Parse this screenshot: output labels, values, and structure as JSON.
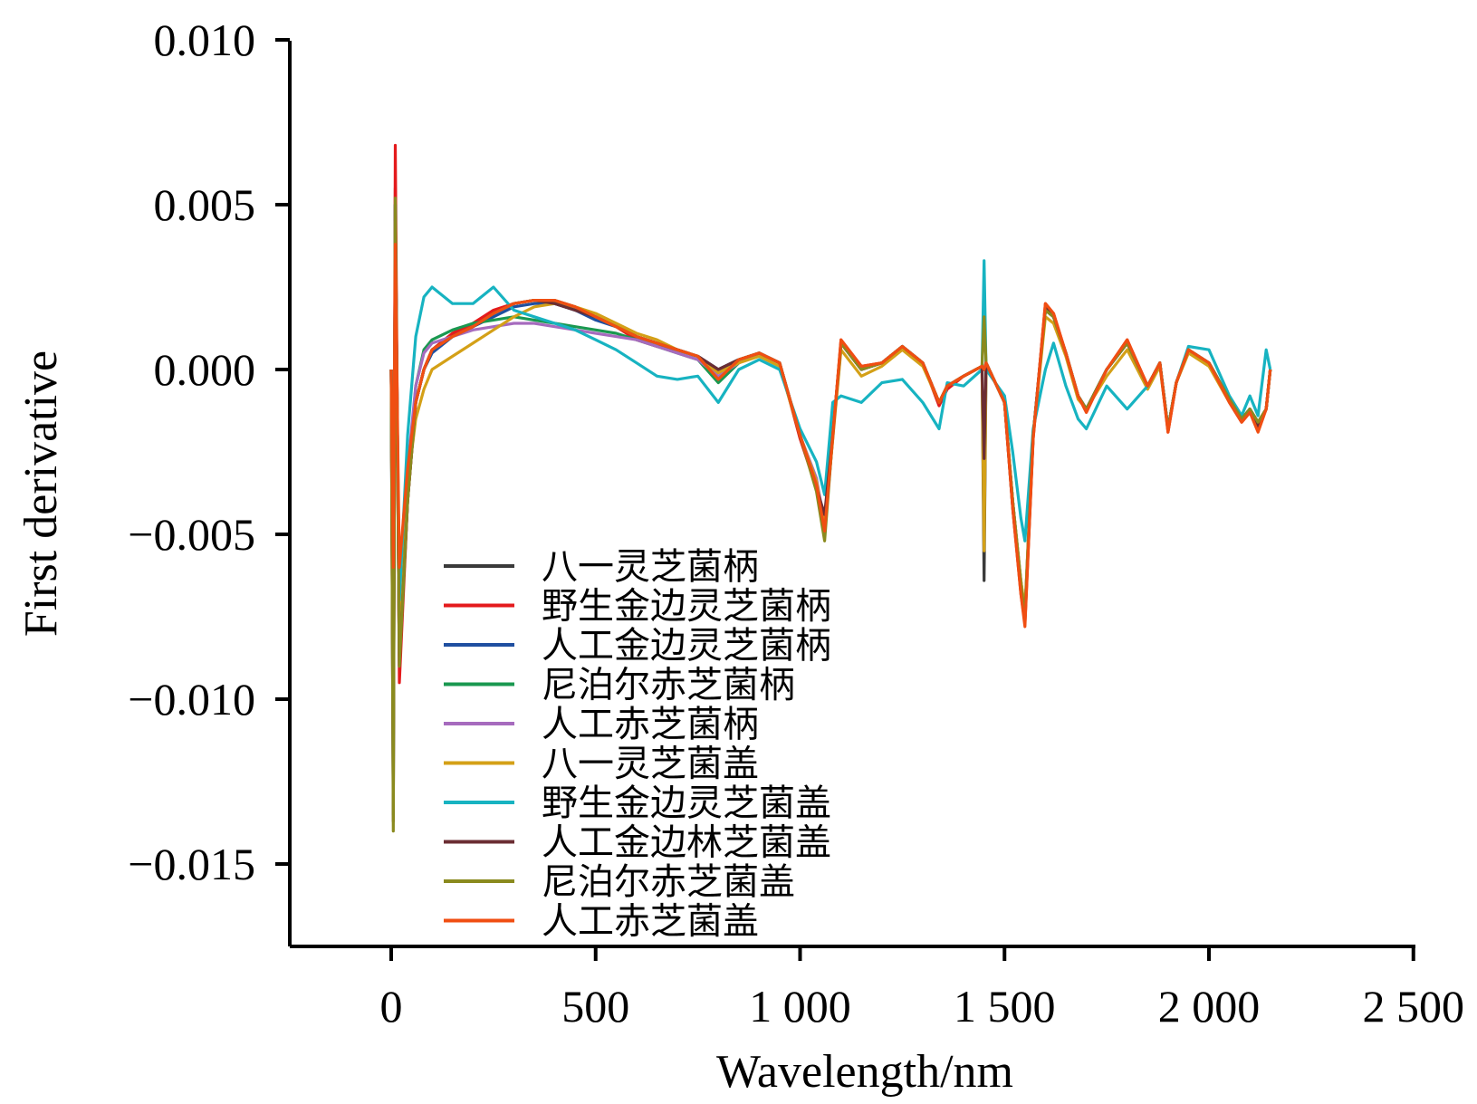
{
  "chart_data": {
    "type": "line",
    "title": "",
    "xlabel": "Wavelength/nm",
    "ylabel": "First derivative",
    "xlim": [
      -250,
      2500
    ],
    "ylim": [
      -0.0175,
      0.01
    ],
    "x_ticks": [
      0,
      500,
      1000,
      1500,
      2000,
      2500
    ],
    "x_tick_labels": [
      "0",
      "500",
      "1 000",
      "1 500",
      "2 000",
      "2 500"
    ],
    "y_ticks": [
      0.01,
      0.005,
      0.0,
      -0.005,
      -0.01,
      -0.015
    ],
    "y_tick_labels": [
      "0.010",
      "0.005",
      "0.000",
      "−0.005",
      "−0.010",
      "−0.015"
    ],
    "grid": false,
    "legend_position": "lower-left-center",
    "x": [
      0,
      5,
      10,
      20,
      40,
      60,
      80,
      100,
      150,
      200,
      250,
      300,
      350,
      400,
      450,
      500,
      550,
      600,
      650,
      700,
      750,
      800,
      850,
      900,
      950,
      1000,
      1040,
      1060,
      1080,
      1100,
      1150,
      1200,
      1250,
      1300,
      1340,
      1360,
      1400,
      1445,
      1450,
      1455,
      1500,
      1520,
      1540,
      1550,
      1570,
      1600,
      1620,
      1650,
      1680,
      1700,
      1750,
      1800,
      1850,
      1880,
      1900,
      1920,
      1950,
      2000,
      2050,
      2080,
      2100,
      2120,
      2140,
      2150
    ],
    "series": [
      {
        "name": "八一灵芝菌柄",
        "color": "#3a3a3a",
        "values": [
          0.0,
          -0.0135,
          0.0055,
          -0.009,
          -0.004,
          -0.001,
          0.0,
          0.0006,
          0.001,
          0.0013,
          0.0017,
          0.002,
          0.0021,
          0.002,
          0.0018,
          0.0016,
          0.0013,
          0.001,
          0.0008,
          0.0006,
          0.0004,
          0.0,
          0.0003,
          0.0005,
          0.0002,
          -0.002,
          -0.0035,
          -0.005,
          -0.002,
          0.0008,
          0.0,
          0.0002,
          0.0007,
          0.0002,
          -0.001,
          -0.0005,
          -0.0002,
          0.0001,
          -0.0064,
          0.0002,
          -0.001,
          -0.004,
          -0.0065,
          -0.0075,
          -0.002,
          0.0018,
          0.0016,
          0.0005,
          -0.0008,
          -0.0012,
          0.0,
          0.0008,
          -0.0005,
          0.0002,
          -0.0018,
          -0.0004,
          0.0006,
          0.0002,
          -0.0009,
          -0.0015,
          -0.0012,
          -0.0016,
          -0.0012,
          0.0
        ]
      },
      {
        "name": "野生金边灵芝菌柄",
        "color": "#e41a1c",
        "values": [
          0.0,
          -0.012,
          0.0068,
          -0.0095,
          -0.004,
          -0.001,
          0.0,
          0.0006,
          0.0011,
          0.0014,
          0.0018,
          0.002,
          0.0021,
          0.0021,
          0.0019,
          0.0016,
          0.0013,
          0.0009,
          0.0007,
          0.0006,
          0.0004,
          -0.0003,
          0.0002,
          0.0005,
          0.0002,
          -0.0021,
          -0.0036,
          -0.0048,
          -0.0021,
          0.0009,
          0.0001,
          0.0002,
          0.0006,
          0.0002,
          -0.0011,
          -0.0006,
          -0.0002,
          0.0001,
          0.0,
          0.0002,
          -0.001,
          -0.0042,
          -0.0068,
          -0.0077,
          -0.0021,
          0.002,
          0.0017,
          0.0005,
          -0.0008,
          -0.0013,
          0.0,
          0.0009,
          -0.0005,
          0.0002,
          -0.0019,
          -0.0004,
          0.0006,
          0.0002,
          -0.001,
          -0.0016,
          -0.0013,
          -0.0018,
          -0.0012,
          0.0
        ]
      },
      {
        "name": "人工金边灵芝菌柄",
        "color": "#1f4fa0",
        "values": [
          0.0,
          -0.011,
          0.005,
          -0.008,
          -0.0035,
          -0.001,
          0.0,
          0.0005,
          0.001,
          0.0013,
          0.0016,
          0.0019,
          0.002,
          0.002,
          0.0018,
          0.0015,
          0.0013,
          0.001,
          0.0008,
          0.0006,
          0.0004,
          0.0,
          0.0003,
          0.0005,
          0.0002,
          -0.002,
          -0.0034,
          -0.0049,
          -0.002,
          0.0008,
          0.0,
          0.0002,
          0.0007,
          0.0002,
          -0.001,
          -0.0005,
          -0.0002,
          0.0001,
          0.0,
          0.0002,
          -0.001,
          -0.004,
          -0.0065,
          -0.0074,
          -0.002,
          0.0018,
          0.0016,
          0.0005,
          -0.0008,
          -0.0012,
          0.0,
          0.0008,
          -0.0005,
          0.0002,
          -0.0018,
          -0.0004,
          0.0006,
          0.0002,
          -0.0009,
          -0.0015,
          -0.0012,
          -0.0016,
          -0.0012,
          0.0
        ]
      },
      {
        "name": "尼泊尔赤芝菌柄",
        "color": "#1a9850",
        "values": [
          0.0,
          -0.012,
          0.005,
          -0.008,
          -0.0035,
          -0.0005,
          0.0006,
          0.0009,
          0.0012,
          0.0014,
          0.0015,
          0.0016,
          0.0015,
          0.0014,
          0.0013,
          0.0012,
          0.0011,
          0.0009,
          0.0007,
          0.0005,
          0.0003,
          -0.0004,
          0.0002,
          0.0005,
          0.0002,
          -0.002,
          -0.0034,
          -0.0049,
          -0.002,
          0.0008,
          0.0,
          0.0002,
          0.0007,
          0.0002,
          -0.001,
          -0.0005,
          -0.0002,
          0.0001,
          0.0,
          0.0002,
          -0.001,
          -0.004,
          -0.0064,
          -0.0074,
          -0.002,
          0.0018,
          0.0016,
          0.0005,
          -0.0008,
          -0.0012,
          0.0,
          0.0008,
          -0.0005,
          0.0002,
          -0.0018,
          -0.0004,
          0.0006,
          0.0002,
          -0.0009,
          -0.0015,
          -0.0012,
          -0.0016,
          -0.0012,
          0.0
        ]
      },
      {
        "name": "人工赤芝菌柄",
        "color": "#a66bbe",
        "values": [
          0.0,
          -0.011,
          0.0045,
          -0.0075,
          -0.003,
          -0.0005,
          0.0005,
          0.0008,
          0.001,
          0.0012,
          0.0013,
          0.0014,
          0.0014,
          0.0013,
          0.0012,
          0.0011,
          0.001,
          0.0009,
          0.0007,
          0.0005,
          0.0003,
          -0.0002,
          0.0002,
          0.0005,
          0.0002,
          -0.002,
          -0.0033,
          -0.0047,
          -0.002,
          0.0008,
          0.0,
          0.0002,
          0.0007,
          0.0002,
          -0.001,
          -0.0005,
          -0.0002,
          0.0001,
          0.0,
          0.0002,
          -0.001,
          -0.004,
          -0.0064,
          -0.0074,
          -0.002,
          0.0018,
          0.0016,
          0.0005,
          -0.0008,
          -0.0012,
          0.0,
          0.0008,
          -0.0005,
          0.0002,
          -0.0018,
          -0.0004,
          0.0006,
          0.0002,
          -0.0009,
          -0.0015,
          -0.0012,
          -0.0016,
          -0.0012,
          0.0
        ]
      },
      {
        "name": "八一灵芝菌盖",
        "color": "#d4a017",
        "values": [
          0.0,
          -0.012,
          0.0045,
          -0.008,
          -0.0035,
          -0.0015,
          -0.0006,
          0.0,
          0.0004,
          0.0008,
          0.0012,
          0.0016,
          0.0019,
          0.002,
          0.0019,
          0.0017,
          0.0014,
          0.0011,
          0.0009,
          0.0006,
          0.0004,
          -0.0001,
          0.0002,
          0.0004,
          0.0001,
          -0.002,
          -0.0034,
          -0.0048,
          -0.0021,
          0.0006,
          -0.0002,
          0.0001,
          0.0006,
          0.0001,
          -0.001,
          -0.0005,
          -0.0002,
          0.0001,
          -0.0055,
          0.0002,
          -0.001,
          -0.004,
          -0.0064,
          -0.0073,
          -0.002,
          0.0016,
          0.0014,
          0.0004,
          -0.0009,
          -0.0012,
          -0.0002,
          0.0006,
          -0.0006,
          0.0001,
          -0.0018,
          -0.0004,
          0.0005,
          0.0001,
          -0.001,
          -0.0015,
          -0.0012,
          -0.0016,
          -0.0012,
          0.0
        ]
      },
      {
        "name": "野生金边灵芝菌盖",
        "color": "#17b3c1",
        "values": [
          0.0,
          -0.01,
          0.004,
          -0.007,
          -0.002,
          0.001,
          0.0022,
          0.0025,
          0.002,
          0.002,
          0.0025,
          0.0018,
          0.0016,
          0.0014,
          0.0012,
          0.0009,
          0.0006,
          0.0002,
          -0.0002,
          -0.0003,
          -0.0002,
          -0.001,
          0.0,
          0.0003,
          0.0,
          -0.0018,
          -0.0028,
          -0.0038,
          -0.001,
          -0.0008,
          -0.001,
          -0.0004,
          -0.0003,
          -0.001,
          -0.0018,
          -0.0004,
          -0.0005,
          0.0,
          0.0033,
          0.0,
          -0.0008,
          -0.0025,
          -0.0045,
          -0.0052,
          -0.0018,
          0.0,
          0.0008,
          -0.0005,
          -0.0015,
          -0.0018,
          -0.0005,
          -0.0012,
          -0.0005,
          0.0002,
          -0.0018,
          -0.0004,
          0.0007,
          0.0006,
          -0.0008,
          -0.0014,
          -0.0008,
          -0.0014,
          0.0006,
          0.0
        ]
      },
      {
        "name": "人工金边林芝菌盖",
        "color": "#6b2d33",
        "values": [
          0.0,
          -0.0137,
          0.005,
          -0.009,
          -0.004,
          -0.001,
          0.0,
          0.0006,
          0.001,
          0.0013,
          0.0017,
          0.002,
          0.0021,
          0.002,
          0.0018,
          0.0016,
          0.0013,
          0.001,
          0.0008,
          0.0006,
          0.0004,
          0.0,
          0.0003,
          0.0005,
          0.0002,
          -0.002,
          -0.0036,
          -0.0044,
          -0.002,
          0.0008,
          0.0,
          0.0002,
          0.0007,
          0.0002,
          -0.001,
          -0.0005,
          -0.0002,
          0.0001,
          -0.0027,
          0.0002,
          -0.001,
          -0.0042,
          -0.0066,
          -0.0076,
          -0.002,
          0.0019,
          0.0016,
          0.0005,
          -0.0008,
          -0.0012,
          0.0,
          0.0008,
          -0.0005,
          0.0002,
          -0.0018,
          -0.0004,
          0.0006,
          0.0002,
          -0.0009,
          -0.0015,
          -0.0012,
          -0.0017,
          -0.0012,
          0.0
        ]
      },
      {
        "name": "尼泊尔赤芝菌盖",
        "color": "#8a8a1e",
        "values": [
          0.0,
          -0.014,
          0.0052,
          -0.009,
          -0.004,
          -0.001,
          0.0,
          0.0006,
          0.001,
          0.0013,
          0.0017,
          0.002,
          0.0021,
          0.0021,
          0.0019,
          0.0016,
          0.0013,
          0.001,
          0.0008,
          0.0006,
          0.0004,
          -0.0003,
          0.0003,
          0.0005,
          0.0002,
          -0.002,
          -0.0037,
          -0.0052,
          -0.002,
          0.0008,
          0.0,
          0.0002,
          0.0007,
          0.0002,
          -0.001,
          -0.0005,
          -0.0002,
          0.0001,
          0.0016,
          0.0002,
          -0.001,
          -0.004,
          -0.0065,
          -0.0075,
          -0.002,
          0.0018,
          0.0016,
          0.0005,
          -0.0008,
          -0.0012,
          0.0,
          0.0008,
          -0.0005,
          0.0002,
          -0.0018,
          -0.0004,
          0.0006,
          0.0002,
          -0.0009,
          -0.0015,
          -0.0012,
          -0.0016,
          -0.0012,
          0.0
        ]
      },
      {
        "name": "人工赤芝菌盖",
        "color": "#f04e12",
        "values": [
          0.0,
          -0.006,
          0.0038,
          -0.006,
          -0.003,
          -0.001,
          0.0,
          0.0006,
          0.001,
          0.0013,
          0.0017,
          0.002,
          0.0021,
          0.0021,
          0.0019,
          0.0016,
          0.0013,
          0.001,
          0.0008,
          0.0006,
          0.0004,
          -0.0003,
          0.0003,
          0.0005,
          0.0002,
          -0.002,
          -0.0035,
          -0.0049,
          -0.002,
          0.0009,
          0.0001,
          0.0002,
          0.0007,
          0.0002,
          -0.001,
          -0.0005,
          -0.0002,
          0.0001,
          0.0,
          0.0002,
          -0.001,
          -0.0042,
          -0.0068,
          -0.0078,
          -0.0021,
          0.002,
          0.0017,
          0.0005,
          -0.0008,
          -0.0013,
          0.0,
          0.0009,
          -0.0005,
          0.0002,
          -0.0019,
          -0.0004,
          0.0006,
          0.0002,
          -0.001,
          -0.0016,
          -0.0013,
          -0.0019,
          -0.0012,
          0.0
        ]
      }
    ]
  }
}
